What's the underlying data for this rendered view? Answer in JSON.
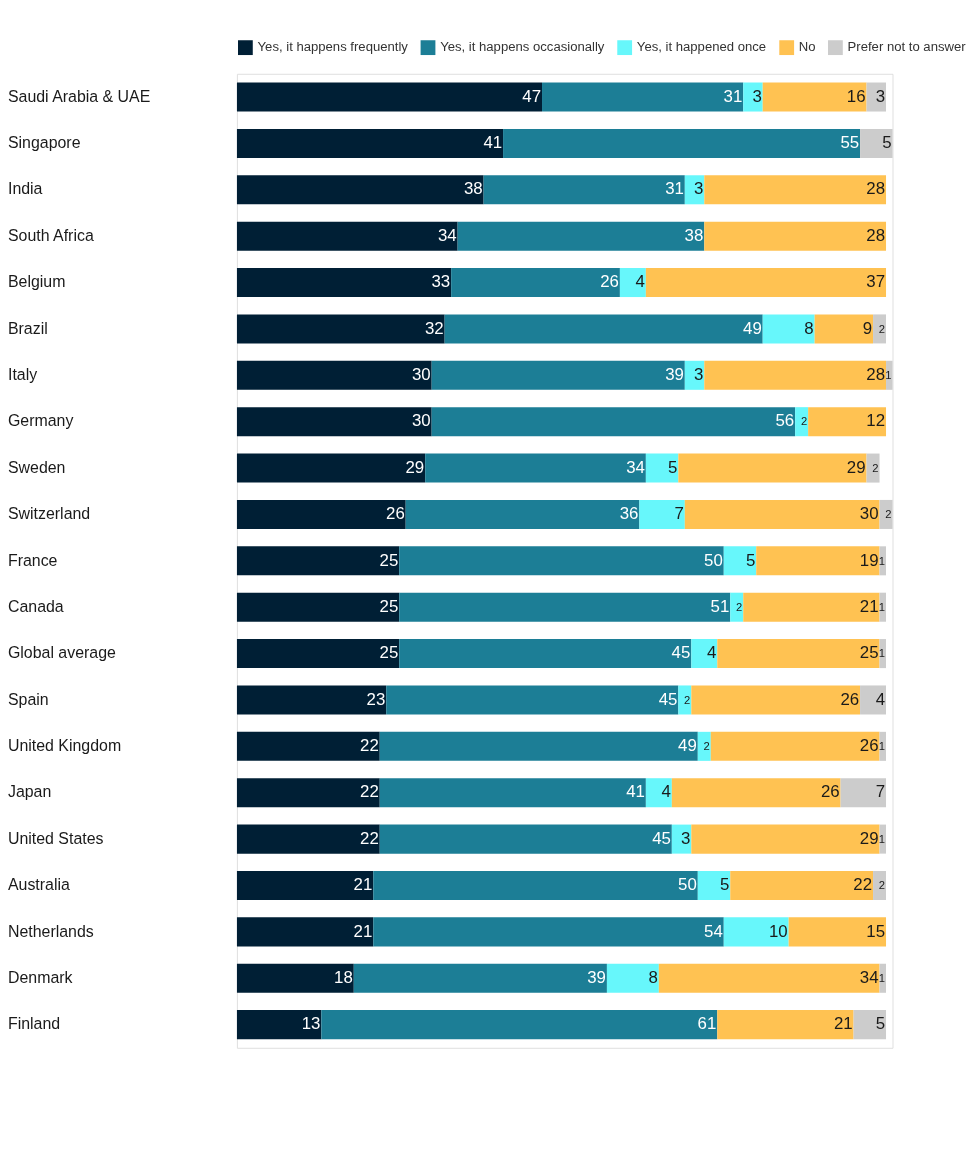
{
  "chart_data": {
    "type": "bar",
    "orientation": "horizontal",
    "stacked": true,
    "data_labels": true,
    "legend": "top",
    "tick_labels": "y",
    "grid": false,
    "categories": [
      "Saudi Arabia & UAE",
      "Singapore",
      "India",
      "South Africa",
      "Belgium",
      "Brazil",
      "Italy",
      "Germany",
      "Sweden",
      "Switzerland",
      "France",
      "Canada",
      "Global average",
      "Spain",
      "United Kingdom",
      "Japan",
      "United States",
      "Australia",
      "Netherlands",
      "Denmark",
      "Finland"
    ],
    "series": [
      {
        "name": "Yes, it happens frequently",
        "color": "#001f35",
        "values": [
          47,
          41,
          38,
          34,
          33,
          32,
          30,
          30,
          29,
          26,
          25,
          25,
          25,
          23,
          22,
          22,
          22,
          21,
          21,
          18,
          13
        ]
      },
      {
        "name": "Yes, it happens occasionally",
        "color": "#1c7e96",
        "values": [
          31,
          55,
          31,
          38,
          26,
          49,
          39,
          56,
          34,
          36,
          50,
          51,
          45,
          45,
          49,
          41,
          45,
          50,
          54,
          39,
          61
        ]
      },
      {
        "name": "Yes, it happened once",
        "color": "#67f7fb",
        "values": [
          3,
          null,
          3,
          null,
          4,
          8,
          3,
          2,
          5,
          7,
          5,
          2,
          4,
          2,
          2,
          4,
          3,
          5,
          10,
          8,
          null
        ]
      },
      {
        "name": "No",
        "color": "#ffc252",
        "values": [
          16,
          null,
          28,
          28,
          37,
          9,
          28,
          12,
          29,
          30,
          19,
          21,
          25,
          26,
          26,
          26,
          29,
          22,
          15,
          34,
          21
        ]
      },
      {
        "name": "Prefer not to answer",
        "color": "#cccccc",
        "values": [
          3,
          5,
          null,
          null,
          null,
          2,
          1,
          null,
          2,
          2,
          1,
          1,
          1,
          4,
          1,
          7,
          1,
          2,
          null,
          1,
          5
        ]
      }
    ]
  }
}
